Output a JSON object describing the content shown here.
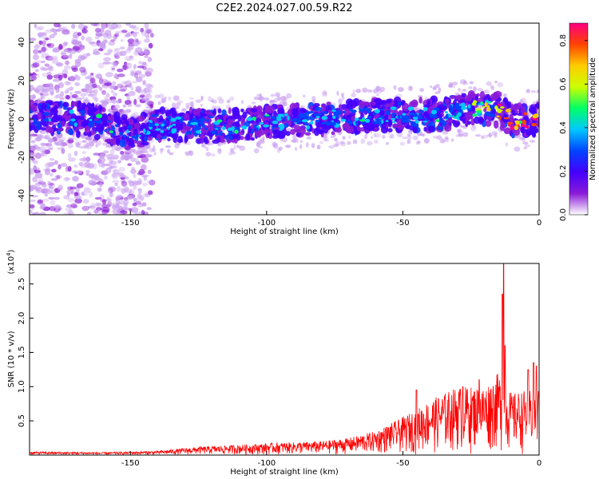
{
  "title": "C2E2.2024.027.00.59.R22",
  "chart_data": [
    {
      "type": "heatmap",
      "xlabel": "Height of straight line (km)",
      "ylabel": "Frequency (Hz)",
      "xlim": [
        -187,
        0
      ],
      "ylim": [
        -50,
        50
      ],
      "xticks": [
        -150,
        -100,
        -50,
        0
      ],
      "yticks": [
        -40,
        -20,
        0,
        20,
        40
      ],
      "colorbar": {
        "label": "Normalized spectral amplitude",
        "range": [
          0.0,
          0.88
        ],
        "ticks": [
          0.0,
          0.2,
          0.4,
          0.6,
          0.8
        ],
        "colormap": [
          "#ffffff",
          "#8a1bd8",
          "#4400ff",
          "#0044ff",
          "#00c8ff",
          "#00ff66",
          "#ccff00",
          "#ffcc00",
          "#ff4400",
          "#ff0080"
        ]
      },
      "band_center": [
        {
          "x": -187,
          "y": 3
        },
        {
          "x": -175,
          "y": 0
        },
        {
          "x": -165,
          "y": 0
        },
        {
          "x": -150,
          "y": -8
        },
        {
          "x": -140,
          "y": -3
        },
        {
          "x": -120,
          "y": -4
        },
        {
          "x": -100,
          "y": -2
        },
        {
          "x": -80,
          "y": 0
        },
        {
          "x": -60,
          "y": 2
        },
        {
          "x": -40,
          "y": 2
        },
        {
          "x": -25,
          "y": 5
        },
        {
          "x": -15,
          "y": 5
        },
        {
          "x": -10,
          "y": -1
        },
        {
          "x": 0,
          "y": 0
        }
      ]
    },
    {
      "type": "line",
      "xlabel": "Height of straight line (km)",
      "ylabel": "SNR (10 * v/v)",
      "scale_label": "(x10",
      "scale_exp": "4",
      "xlim": [
        -187,
        0
      ],
      "ylim": [
        0,
        2.8
      ],
      "xticks": [
        -150,
        -100,
        -50,
        0
      ],
      "yticks": [
        0.5,
        1.0,
        1.5,
        2.0,
        2.5
      ],
      "series": [
        {
          "color": "#ff0000",
          "envelope": [
            {
              "x": -187,
              "y": 0.05
            },
            {
              "x": -160,
              "y": 0.04
            },
            {
              "x": -140,
              "y": 0.06
            },
            {
              "x": -125,
              "y": 0.12
            },
            {
              "x": -110,
              "y": 0.15
            },
            {
              "x": -95,
              "y": 0.18
            },
            {
              "x": -80,
              "y": 0.2
            },
            {
              "x": -70,
              "y": 0.25
            },
            {
              "x": -60,
              "y": 0.35
            },
            {
              "x": -50,
              "y": 0.55
            },
            {
              "x": -40,
              "y": 0.8
            },
            {
              "x": -30,
              "y": 1.0
            },
            {
              "x": -20,
              "y": 1.0
            },
            {
              "x": -15,
              "y": 1.2
            },
            {
              "x": -10,
              "y": 0.9
            },
            {
              "x": 0,
              "y": 1.0
            }
          ],
          "peaks": [
            {
              "x": -13,
              "y": 2.8
            },
            {
              "x": -13.5,
              "y": 2.35
            },
            {
              "x": -12.5,
              "y": 1.6
            },
            {
              "x": -4,
              "y": 1.25
            },
            {
              "x": -2,
              "y": 1.35
            },
            {
              "x": -1,
              "y": 1.3
            },
            {
              "x": -45,
              "y": 0.95
            },
            {
              "x": -28,
              "y": 1.0
            },
            {
              "x": -22,
              "y": 1.1
            }
          ]
        }
      ]
    }
  ]
}
